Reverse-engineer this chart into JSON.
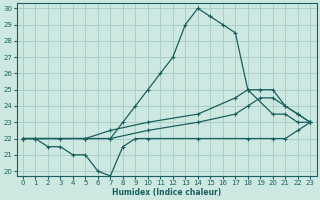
{
  "xlabel": "Humidex (Indice chaleur)",
  "bg_color": "#cce8e0",
  "grid_color": "#aacec8",
  "line_color": "#1a6060",
  "xlim": [
    -0.5,
    23.5
  ],
  "ylim": [
    19.7,
    30.3
  ],
  "xticks": [
    0,
    1,
    2,
    3,
    4,
    5,
    6,
    7,
    8,
    9,
    10,
    11,
    12,
    13,
    14,
    15,
    16,
    17,
    18,
    19,
    20,
    21,
    22,
    23
  ],
  "yticks": [
    20,
    21,
    22,
    23,
    24,
    25,
    26,
    27,
    28,
    29,
    30
  ],
  "lines": [
    {
      "x": [
        0,
        1,
        3,
        5,
        7,
        8,
        9,
        10,
        11,
        12,
        13,
        14,
        15,
        16,
        17,
        18,
        20,
        21,
        22,
        23
      ],
      "y": [
        22,
        22,
        22,
        22,
        22,
        23,
        24,
        25,
        26,
        27,
        29,
        30,
        29.5,
        29,
        28.5,
        25,
        23.5,
        23.5,
        23,
        23
      ]
    },
    {
      "x": [
        0,
        1,
        2,
        3,
        4,
        5,
        6,
        7,
        8,
        9,
        10,
        14,
        18,
        20,
        21,
        22,
        23
      ],
      "y": [
        22,
        22,
        21.5,
        21.5,
        21,
        21,
        20,
        19.7,
        21.5,
        22,
        22,
        22,
        22,
        22,
        22,
        22.5,
        23
      ]
    },
    {
      "x": [
        0,
        1,
        5,
        7,
        10,
        14,
        17,
        18,
        19,
        20,
        21,
        22,
        23
      ],
      "y": [
        22,
        22,
        22,
        22,
        22.5,
        23,
        23.5,
        24,
        24.5,
        24.5,
        24,
        23.5,
        23
      ]
    },
    {
      "x": [
        0,
        1,
        5,
        7,
        10,
        14,
        17,
        18,
        19,
        20,
        21,
        22,
        23
      ],
      "y": [
        22,
        22,
        22,
        22.5,
        23,
        23.5,
        24.5,
        25,
        25,
        25,
        24,
        23.5,
        23
      ]
    }
  ]
}
